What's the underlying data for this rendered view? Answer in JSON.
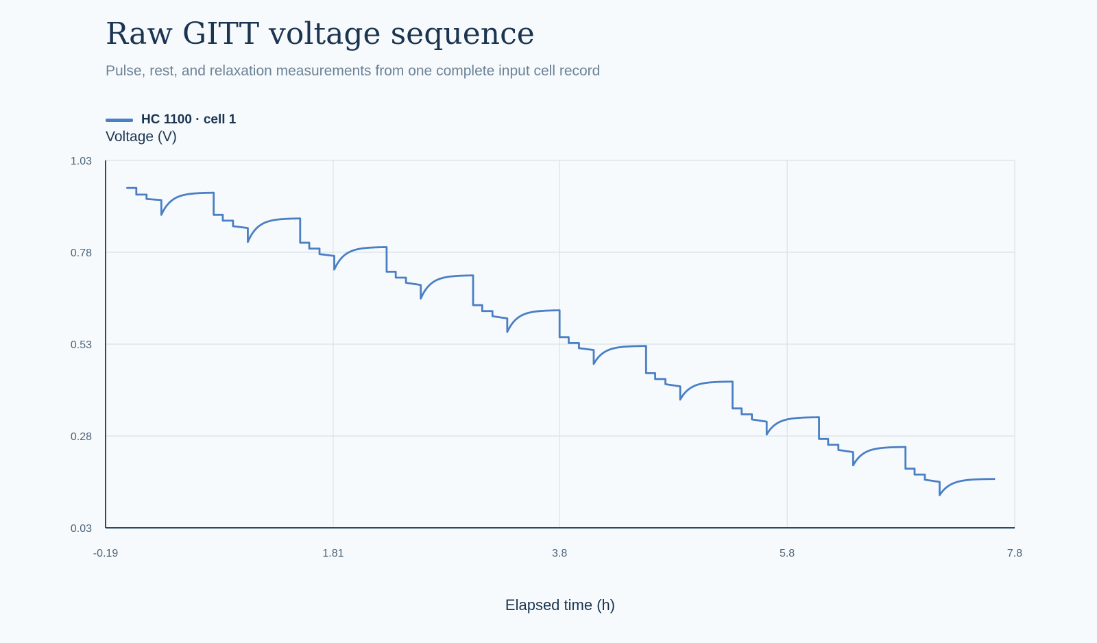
{
  "colors": {
    "line": "#4a7fc4",
    "grid": "#d7e2ea",
    "axis": "#2e4a63"
  },
  "chart_data": {
    "type": "line",
    "title": "Raw GITT voltage sequence",
    "subtitle": "Pulse, rest, and relaxation measurements from one complete input cell record",
    "xlabel": "Elapsed time (h)",
    "ylabel": "Voltage (V)",
    "xlim": [
      -0.19,
      7.8
    ],
    "ylim": [
      0.03,
      1.03
    ],
    "x_ticks": [
      -0.19,
      1.81,
      3.8,
      5.8,
      7.8
    ],
    "x_tick_labels": [
      "-0.19",
      "1.81",
      "3.8",
      "5.8",
      "7.8"
    ],
    "y_ticks": [
      0.03,
      0.28,
      0.53,
      0.78,
      1.03
    ],
    "y_tick_labels": [
      "0.03",
      "0.28",
      "0.53",
      "0.78",
      "1.03"
    ],
    "grid": true,
    "legend_position": "top-left",
    "series": [
      {
        "name": "HC 1100 · cell 1",
        "cycles": [
          {
            "t_start": 0.0,
            "v_start": 0.955,
            "v_step": 0.937,
            "v_mid": 0.925,
            "v_end": 0.922,
            "v_min": 0.882,
            "v_recovered": 0.942
          },
          {
            "t_start": 0.76,
            "v_start": 0.882,
            "v_step": 0.866,
            "v_mid": 0.851,
            "v_end": 0.846,
            "v_min": 0.808,
            "v_recovered": 0.872
          },
          {
            "t_start": 1.52,
            "v_start": 0.806,
            "v_step": 0.79,
            "v_mid": 0.775,
            "v_end": 0.77,
            "v_min": 0.733,
            "v_recovered": 0.794
          },
          {
            "t_start": 2.28,
            "v_start": 0.727,
            "v_step": 0.711,
            "v_mid": 0.697,
            "v_end": 0.691,
            "v_min": 0.654,
            "v_recovered": 0.717
          },
          {
            "t_start": 3.04,
            "v_start": 0.636,
            "v_step": 0.62,
            "v_mid": 0.606,
            "v_end": 0.6,
            "v_min": 0.563,
            "v_recovered": 0.622
          },
          {
            "t_start": 3.8,
            "v_start": 0.549,
            "v_step": 0.533,
            "v_mid": 0.519,
            "v_end": 0.514,
            "v_min": 0.476,
            "v_recovered": 0.525
          },
          {
            "t_start": 4.56,
            "v_start": 0.451,
            "v_step": 0.435,
            "v_mid": 0.421,
            "v_end": 0.415,
            "v_min": 0.379,
            "v_recovered": 0.428
          },
          {
            "t_start": 5.32,
            "v_start": 0.355,
            "v_step": 0.339,
            "v_mid": 0.325,
            "v_end": 0.319,
            "v_min": 0.284,
            "v_recovered": 0.331
          },
          {
            "t_start": 6.08,
            "v_start": 0.272,
            "v_step": 0.256,
            "v_mid": 0.242,
            "v_end": 0.236,
            "v_min": 0.2,
            "v_recovered": 0.25
          },
          {
            "t_start": 6.84,
            "v_start": 0.191,
            "v_step": 0.175,
            "v_mid": 0.161,
            "v_end": 0.155,
            "v_min": 0.119,
            "v_recovered": 0.163
          }
        ],
        "t_end": 7.62
      }
    ]
  }
}
